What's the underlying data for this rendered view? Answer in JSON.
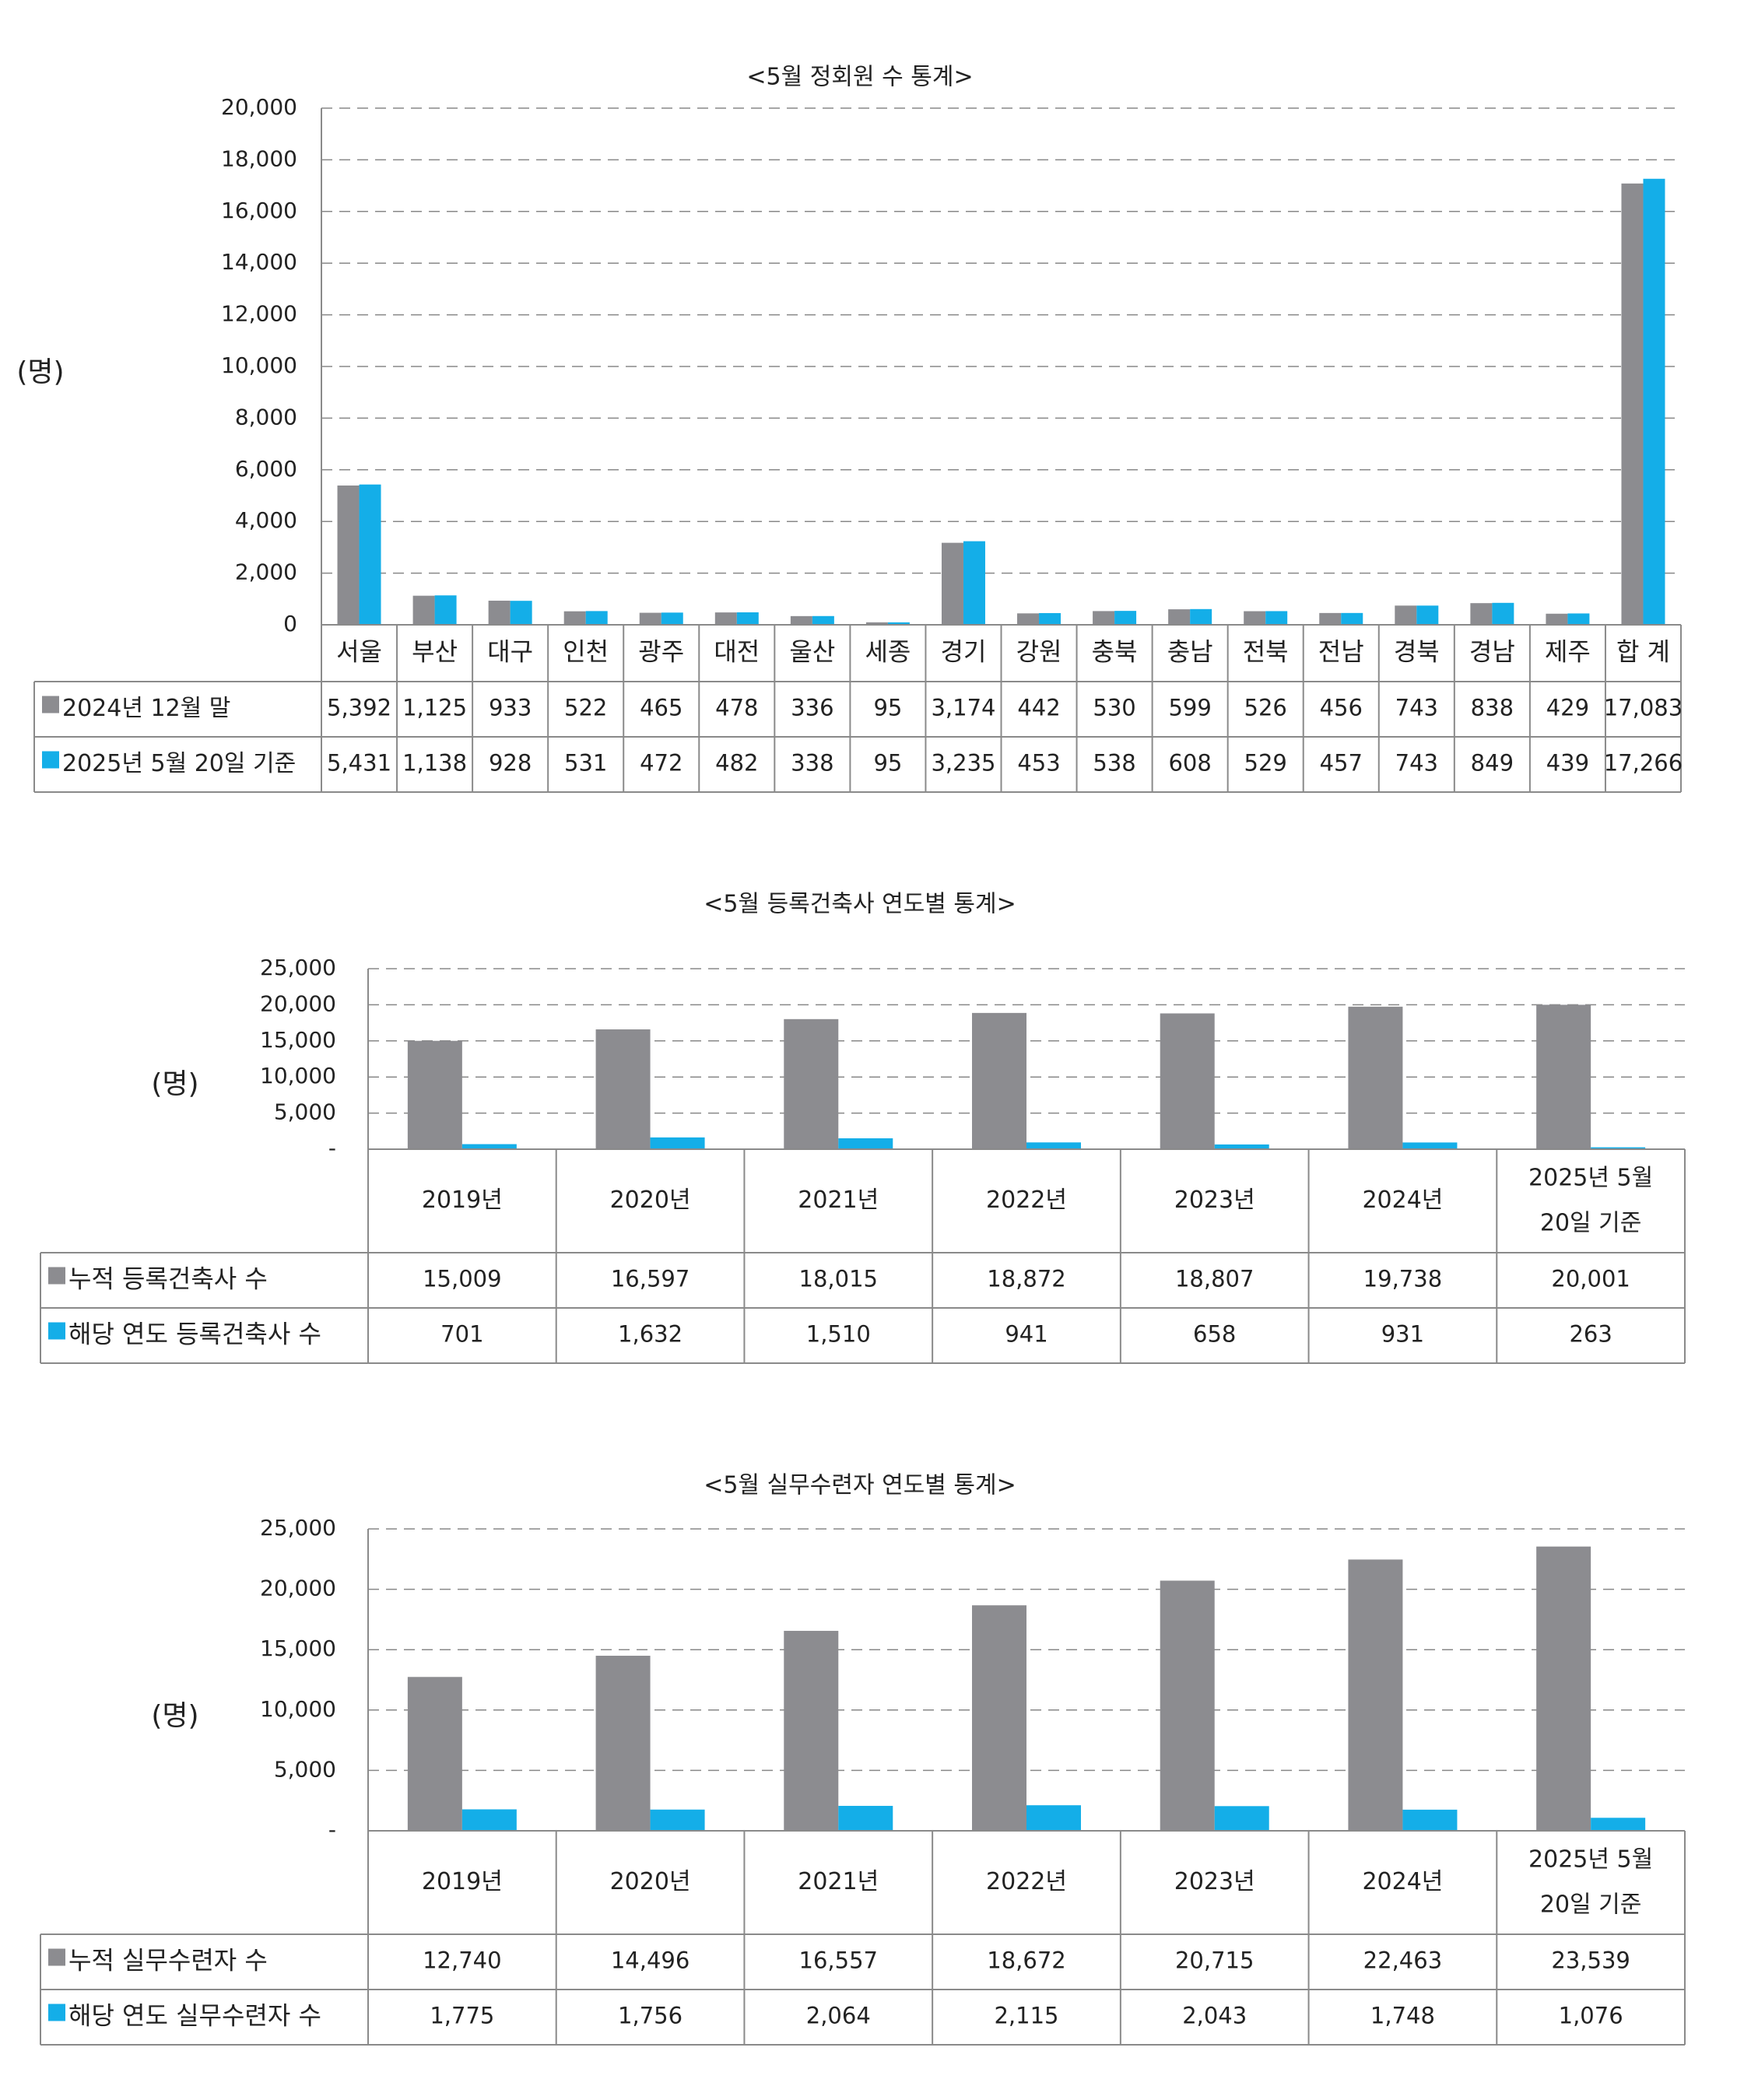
{
  "colors": {
    "series1": "#8c8c90",
    "series2": "#14aee8",
    "grid": "#888888",
    "border": "#8a8a8a"
  },
  "unit_label": "(명)",
  "chart_data": [
    {
      "type": "bar",
      "title": "<5월 정회원 수 통계>",
      "ylabel": "(명)",
      "ylim": [
        0,
        20000
      ],
      "yticks": [
        "0",
        "2,000",
        "4,000",
        "6,000",
        "8,000",
        "10,000",
        "12,000",
        "14,000",
        "16,000",
        "18,000",
        "20,000"
      ],
      "categories": [
        "서울",
        "부산",
        "대구",
        "인천",
        "광주",
        "대전",
        "울산",
        "세종",
        "경기",
        "강원",
        "충북",
        "충남",
        "전북",
        "전남",
        "경북",
        "경남",
        "제주",
        "합 계"
      ],
      "series": [
        {
          "name": "2024년 12월 말",
          "values": [
            5392,
            1125,
            933,
            522,
            465,
            478,
            336,
            95,
            3174,
            442,
            530,
            599,
            526,
            456,
            743,
            838,
            429,
            17083
          ],
          "labels": [
            "5,392",
            "1,125",
            "933",
            "522",
            "465",
            "478",
            "336",
            "95",
            "3,174",
            "442",
            "530",
            "599",
            "526",
            "456",
            "743",
            "838",
            "429",
            "17,083"
          ]
        },
        {
          "name": "2025년 5월 20일 기준",
          "values": [
            5431,
            1138,
            928,
            531,
            472,
            482,
            338,
            95,
            3235,
            453,
            538,
            608,
            529,
            457,
            743,
            849,
            439,
            17266
          ],
          "labels": [
            "5,431",
            "1,138",
            "928",
            "531",
            "472",
            "482",
            "338",
            "95",
            "3,235",
            "453",
            "538",
            "608",
            "529",
            "457",
            "743",
            "849",
            "439",
            "17,266"
          ]
        }
      ],
      "grid": true,
      "legend": "table"
    },
    {
      "type": "bar",
      "title": "<5월 등록건축사 연도별 통계>",
      "ylabel": "(명)",
      "ylim": [
        0,
        25000
      ],
      "yticks": [
        "-",
        "5,000",
        "10,000",
        "15,000",
        "20,000",
        "25,000"
      ],
      "categories": [
        "2019년",
        "2020년",
        "2021년",
        "2022년",
        "2023년",
        "2024년",
        "2025년 5월\n20일 기준"
      ],
      "series": [
        {
          "name": "누적 등록건축사 수",
          "values": [
            15009,
            16597,
            18015,
            18872,
            18807,
            19738,
            20001
          ],
          "labels": [
            "15,009",
            "16,597",
            "18,015",
            "18,872",
            "18,807",
            "19,738",
            "20,001"
          ]
        },
        {
          "name": "해당 연도 등록건축사 수",
          "values": [
            701,
            1632,
            1510,
            941,
            658,
            931,
            263
          ],
          "labels": [
            "701",
            "1,632",
            "1,510",
            "941",
            "658",
            "931",
            "263"
          ]
        }
      ],
      "grid": true,
      "legend": "table"
    },
    {
      "type": "bar",
      "title": "<5월 실무수련자 연도별 통계>",
      "ylabel": "(명)",
      "ylim": [
        0,
        25000
      ],
      "yticks": [
        "-",
        "5,000",
        "10,000",
        "15,000",
        "20,000",
        "25,000"
      ],
      "categories": [
        "2019년",
        "2020년",
        "2021년",
        "2022년",
        "2023년",
        "2024년",
        "2025년 5월\n20일 기준"
      ],
      "series": [
        {
          "name": "누적 실무수련자 수",
          "values": [
            12740,
            14496,
            16557,
            18672,
            20715,
            22463,
            23539
          ],
          "labels": [
            "12,740",
            "14,496",
            "16,557",
            "18,672",
            "20,715",
            "22,463",
            "23,539"
          ]
        },
        {
          "name": "해당 연도 실무수련자 수",
          "values": [
            1775,
            1756,
            2064,
            2115,
            2043,
            1748,
            1076
          ],
          "labels": [
            "1,775",
            "1,756",
            "2,064",
            "2,115",
            "2,043",
            "1,748",
            "1,076"
          ]
        }
      ],
      "grid": true,
      "legend": "table"
    }
  ]
}
